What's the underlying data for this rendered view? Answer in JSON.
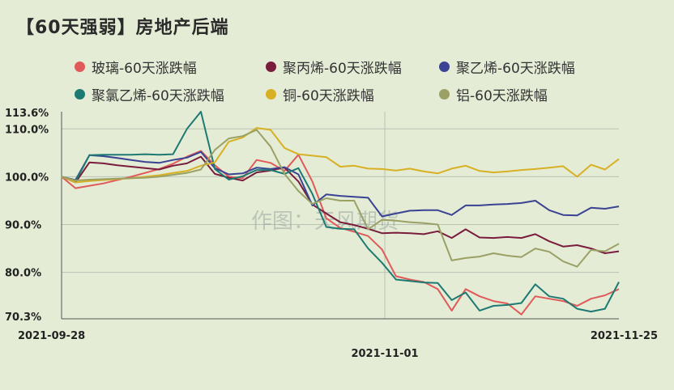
{
  "colors": {
    "background": "#e4ecd6",
    "grid": "#b9c3b3"
  },
  "title": "【60天强弱】房地产后端",
  "watermark": "作图：天风期货",
  "chart_data": {
    "type": "line",
    "title": "【60天强弱】房地产后端",
    "legend_placement": "top-left",
    "grid": true,
    "x_axis": {
      "ticks": [
        {
          "label": "2021-09-28",
          "pos": "left"
        },
        {
          "label": "2021-11-01",
          "pos": "middle"
        },
        {
          "label": "2021-11-25",
          "pos": "right"
        }
      ],
      "range": [
        0,
        40
      ]
    },
    "y_axis": {
      "range": [
        70.3,
        113.6
      ],
      "ticks": [
        {
          "label": "113.6%",
          "value": 113.6
        },
        {
          "label": "110.0%",
          "value": 110.0
        },
        {
          "label": "100.0%",
          "value": 100.0
        },
        {
          "label": "90.0%",
          "value": 90.0
        },
        {
          "label": "80.0%",
          "value": 80.0
        },
        {
          "label": "70.3%",
          "value": 70.3
        }
      ],
      "grid_values": [
        110.0,
        100.0,
        90.0,
        80.0
      ]
    },
    "series": [
      {
        "name": "玻璃-60天涨跌幅",
        "color": "#e05a5a",
        "x": [
          0,
          1,
          2,
          3,
          4,
          5,
          6,
          7,
          8,
          9,
          10,
          11,
          12,
          13,
          14,
          15,
          16,
          17,
          18,
          19,
          20,
          21,
          22,
          23,
          24,
          25,
          26,
          27,
          28,
          29,
          30,
          31,
          32,
          33,
          34,
          35,
          36,
          37,
          38,
          39,
          40
        ],
        "values": [
          100.0,
          97.6,
          98.1,
          98.6,
          99.3,
          100.0,
          100.8,
          101.6,
          102.7,
          104.2,
          105.4,
          102.4,
          100.0,
          99.7,
          103.5,
          102.9,
          101.2,
          104.6,
          99.0,
          91.3,
          89.3,
          88.5,
          87.6,
          84.8,
          79.2,
          78.5,
          78.0,
          76.5,
          72.0,
          76.5,
          75.0,
          74.0,
          73.5,
          71.2,
          75.0,
          74.5,
          74.0,
          73.0,
          74.5,
          75.2,
          76.5
        ]
      },
      {
        "name": "聚丙烯-60天涨跌幅",
        "color": "#7a1d3d",
        "x": [
          0,
          1,
          2,
          3,
          4,
          5,
          6,
          7,
          8,
          9,
          10,
          11,
          12,
          13,
          14,
          15,
          16,
          17,
          18,
          19,
          20,
          21,
          22,
          23,
          24,
          25,
          26,
          27,
          28,
          29,
          30,
          31,
          32,
          33,
          34,
          35,
          36,
          37,
          38,
          39,
          40
        ],
        "values": [
          100.0,
          98.8,
          103.0,
          102.8,
          102.4,
          102.1,
          101.8,
          101.5,
          102.3,
          102.8,
          104.2,
          100.6,
          99.8,
          99.2,
          100.9,
          101.3,
          101.9,
          99.0,
          94.2,
          92.3,
          90.5,
          89.9,
          89.1,
          88.2,
          88.3,
          88.2,
          88.0,
          88.6,
          87.2,
          89.0,
          87.3,
          87.2,
          87.4,
          87.2,
          88.0,
          86.5,
          85.4,
          85.7,
          85.0,
          84.0,
          84.4
        ]
      },
      {
        "name": "聚乙烯-60天涨跌幅",
        "color": "#3a4293",
        "x": [
          0,
          1,
          2,
          3,
          4,
          5,
          6,
          7,
          8,
          9,
          10,
          11,
          12,
          13,
          14,
          15,
          16,
          17,
          18,
          19,
          20,
          21,
          22,
          23,
          24,
          25,
          26,
          27,
          28,
          29,
          30,
          31,
          32,
          33,
          34,
          35,
          36,
          37,
          38,
          39,
          40
        ],
        "values": [
          100.0,
          99.3,
          104.5,
          104.3,
          103.9,
          103.5,
          103.1,
          102.9,
          103.5,
          104.0,
          105.2,
          101.8,
          100.5,
          100.7,
          101.9,
          101.6,
          102.0,
          100.5,
          94.0,
          96.3,
          96.0,
          95.8,
          95.6,
          91.7,
          92.3,
          92.9,
          93.0,
          93.0,
          92.0,
          94.0,
          94.0,
          94.2,
          94.3,
          94.5,
          95.0,
          93.0,
          92.0,
          91.9,
          93.5,
          93.3,
          93.8
        ]
      },
      {
        "name": "聚氯乙烯-60天涨跌幅",
        "color": "#1d7a72",
        "x": [
          0,
          1,
          2,
          3,
          4,
          5,
          6,
          7,
          8,
          9,
          10,
          11,
          12,
          13,
          14,
          15,
          16,
          17,
          18,
          19,
          20,
          21,
          22,
          23,
          24,
          25,
          26,
          27,
          28,
          29,
          30,
          31,
          32,
          33,
          34,
          35,
          36,
          37,
          38,
          39,
          40
        ],
        "values": [
          100.0,
          99.0,
          104.5,
          104.6,
          104.6,
          104.6,
          104.7,
          104.6,
          104.7,
          110.0,
          113.6,
          101.6,
          99.4,
          100.1,
          101.4,
          101.4,
          100.6,
          101.8,
          96.4,
          89.5,
          89.1,
          89.0,
          85.0,
          82.0,
          78.5,
          78.2,
          77.9,
          77.8,
          74.2,
          75.8,
          72.0,
          73.0,
          73.2,
          73.6,
          77.5,
          75.0,
          74.5,
          72.4,
          71.8,
          72.4,
          78.0
        ]
      },
      {
        "name": "铜-60天涨跌幅",
        "color": "#d8b023",
        "x": [
          0,
          1,
          2,
          3,
          4,
          5,
          6,
          7,
          8,
          9,
          10,
          11,
          12,
          13,
          14,
          15,
          16,
          17,
          18,
          19,
          20,
          21,
          22,
          23,
          24,
          25,
          26,
          27,
          28,
          29,
          30,
          31,
          32,
          33,
          34,
          35,
          36,
          37,
          38,
          39,
          40
        ],
        "values": [
          100.0,
          98.8,
          99.1,
          99.3,
          99.5,
          99.7,
          100.0,
          100.3,
          100.8,
          101.2,
          102.3,
          103.0,
          107.3,
          108.2,
          110.2,
          109.8,
          106.0,
          104.7,
          104.4,
          104.1,
          102.1,
          102.3,
          101.7,
          101.6,
          101.3,
          101.7,
          101.1,
          100.7,
          101.7,
          102.3,
          101.2,
          100.9,
          101.1,
          101.4,
          101.6,
          101.9,
          102.2,
          100.0,
          102.5,
          101.5,
          103.7
        ]
      },
      {
        "name": "铝-60天涨跌幅",
        "color": "#9ba065",
        "x": [
          0,
          1,
          2,
          3,
          4,
          5,
          6,
          7,
          8,
          9,
          10,
          11,
          12,
          13,
          14,
          15,
          16,
          17,
          18,
          19,
          20,
          21,
          22,
          23,
          24,
          25,
          26,
          27,
          28,
          29,
          30,
          31,
          32,
          33,
          34,
          35,
          36,
          37,
          38,
          39,
          40
        ],
        "values": [
          100.0,
          99.2,
          99.4,
          99.5,
          99.6,
          99.7,
          99.8,
          100.0,
          100.4,
          100.8,
          101.5,
          105.6,
          108.0,
          108.5,
          109.8,
          106.3,
          100.6,
          97.0,
          94.3,
          95.5,
          95.0,
          95.0,
          89.0,
          91.0,
          90.8,
          90.5,
          90.3,
          90.0,
          82.5,
          83.0,
          83.3,
          84.0,
          83.5,
          83.2,
          85.0,
          84.3,
          82.3,
          81.2,
          84.7,
          84.4,
          86.0
        ]
      }
    ]
  }
}
